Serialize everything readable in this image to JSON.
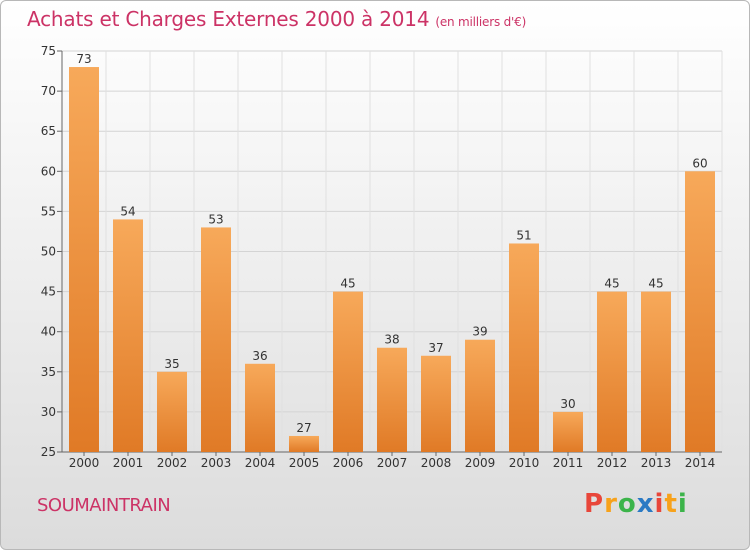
{
  "title": "Achats et Charges Externes 2000 à 2014",
  "unit": "(en milliers d'€)",
  "place": "SOUMAINTRAIN",
  "logo": {
    "text": "Proxiti",
    "colors": [
      "#e8463a",
      "#f7a21b",
      "#3cb44a",
      "#2b7ac4",
      "#e8463a",
      "#f7a21b",
      "#3cb44a"
    ]
  },
  "colors": {
    "bar_light": "#f7a95a",
    "bar_dark": "#e07a26",
    "title": "#cc3366"
  },
  "chart_data": {
    "type": "bar",
    "categories": [
      "2000",
      "2001",
      "2002",
      "2003",
      "2004",
      "2005",
      "2006",
      "2007",
      "2008",
      "2009",
      "2010",
      "2011",
      "2012",
      "2013",
      "2014"
    ],
    "values": [
      73,
      54,
      35,
      53,
      36,
      27,
      45,
      38,
      37,
      39,
      51,
      30,
      45,
      45,
      60
    ],
    "ylim": [
      25,
      75
    ],
    "yticks": [
      25,
      30,
      35,
      40,
      45,
      50,
      55,
      60,
      65,
      70,
      75
    ],
    "grid": true
  }
}
